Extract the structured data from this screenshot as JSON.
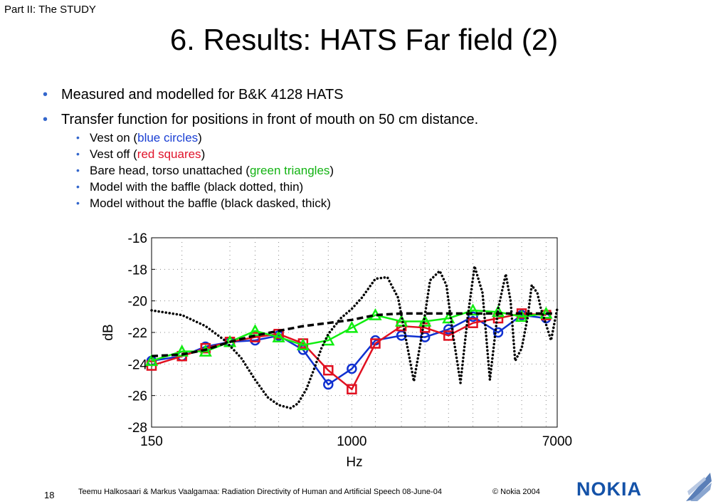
{
  "header": {
    "part": "Part II: The STUDY",
    "title": "6. Results: HATS Far field (2)"
  },
  "bullets": {
    "b1": "Measured and modelled for B&K 4128 HATS",
    "b2": "Transfer function for positions in front of mouth on 50 cm distance.",
    "sub": [
      {
        "pre": "Vest on (",
        "hl": "blue circles",
        "post": ")"
      },
      {
        "pre": "Vest off (",
        "hl": "red squares",
        "post": ")"
      },
      {
        "pre": "Bare head, torso unattached (",
        "hl": "green triangles",
        "post": ")"
      },
      {
        "pre": "Model with the baffle (black dotted, thin)",
        "hl": "",
        "post": ""
      },
      {
        "pre": "Model without the baffle (black dasked, thick)",
        "hl": "",
        "post": ""
      }
    ]
  },
  "chart_data": {
    "type": "line",
    "xlabel": "Hz",
    "ylabel": "dB",
    "xscale": "log",
    "xlim": [
      150,
      7000
    ],
    "ylim": [
      -28,
      -16
    ],
    "xticks": [
      150,
      1000,
      7000
    ],
    "xtick_labels": [
      "150",
      "1000",
      "7000"
    ],
    "yticks": [
      -16,
      -18,
      -20,
      -22,
      -24,
      -26,
      -28
    ],
    "ytick_labels": [
      "-16",
      "-18",
      "-20",
      "-22",
      "-24",
      "-26",
      "-28"
    ],
    "grid": true,
    "grid_x": [
      200,
      315,
      400,
      500,
      630,
      800,
      1000,
      1250,
      1600,
      2000,
      2500,
      3150,
      4000,
      5000,
      6300
    ],
    "series": [
      {
        "key": "blue",
        "color": "#1030d0",
        "marker": "circle",
        "style": "solid",
        "x": [
          150,
          200,
          250,
          315,
          400,
          500,
          630,
          800,
          1000,
          1250,
          1600,
          2000,
          2500,
          3150,
          4000,
          5000,
          6300
        ],
        "y": [
          -23.8,
          -23.5,
          -22.9,
          -22.6,
          -22.5,
          -22.2,
          -23.1,
          -25.3,
          -24.3,
          -22.5,
          -22.2,
          -22.3,
          -21.8,
          -21.0,
          -22.0,
          -20.9,
          -21.1
        ]
      },
      {
        "key": "red",
        "color": "#e01020",
        "marker": "square",
        "style": "solid",
        "x": [
          150,
          200,
          250,
          315,
          400,
          500,
          630,
          800,
          1000,
          1250,
          1600,
          2000,
          2500,
          3150,
          4000,
          5000,
          6300
        ],
        "y": [
          -24.1,
          -23.5,
          -23.0,
          -22.6,
          -22.3,
          -22.1,
          -22.7,
          -24.4,
          -25.6,
          -22.7,
          -21.6,
          -21.7,
          -22.2,
          -21.4,
          -21.1,
          -20.8,
          -20.9
        ]
      },
      {
        "key": "green",
        "color": "#10ee10",
        "marker": "triangle",
        "style": "solid",
        "x": [
          150,
          200,
          250,
          315,
          400,
          500,
          630,
          800,
          1000,
          1250,
          1600,
          2000,
          2500,
          3150,
          4000,
          5000,
          6300
        ],
        "y": [
          -23.8,
          -23.2,
          -23.2,
          -22.6,
          -21.9,
          -22.3,
          -22.8,
          -22.5,
          -21.7,
          -20.9,
          -21.3,
          -21.3,
          -21.1,
          -20.6,
          -20.7,
          -21.0,
          -20.8
        ]
      },
      {
        "key": "dotted",
        "color": "#000000",
        "marker": "none",
        "style": "dotted",
        "x": [
          150,
          200,
          250,
          300,
          350,
          400,
          450,
          500,
          560,
          600,
          650,
          700,
          750,
          800,
          900,
          1000,
          1100,
          1250,
          1400,
          1550,
          1650,
          1800,
          1950,
          2100,
          2300,
          2450,
          2600,
          2800,
          3000,
          3200,
          3450,
          3700,
          4000,
          4300,
          4500,
          4700,
          5000,
          5300,
          5500,
          5800,
          6000,
          6300,
          6600,
          7000
        ],
        "y": [
          -20.6,
          -20.9,
          -21.6,
          -22.5,
          -23.6,
          -25.0,
          -26.1,
          -26.6,
          -26.8,
          -26.5,
          -25.6,
          -24.3,
          -23.0,
          -22.1,
          -21.1,
          -20.5,
          -19.8,
          -18.6,
          -18.5,
          -19.8,
          -22.0,
          -25.1,
          -22.0,
          -18.7,
          -18.1,
          -19.0,
          -22.0,
          -25.2,
          -21.0,
          -17.8,
          -19.5,
          -25.0,
          -20.5,
          -18.3,
          -20.0,
          -23.8,
          -23.0,
          -21.0,
          -19.0,
          -19.5,
          -20.5,
          -21.5,
          -22.5,
          -20.5
        ]
      },
      {
        "key": "dashed",
        "color": "#000000",
        "marker": "none",
        "style": "dashed",
        "x": [
          150,
          200,
          250,
          315,
          400,
          500,
          630,
          800,
          1000,
          1250,
          1600,
          2000,
          2500,
          3150,
          4000,
          5000,
          6300,
          7000
        ],
        "y": [
          -23.5,
          -23.4,
          -23.1,
          -22.6,
          -22.2,
          -21.9,
          -21.6,
          -21.4,
          -21.2,
          -20.9,
          -20.8,
          -20.8,
          -20.8,
          -20.8,
          -20.8,
          -20.8,
          -20.8,
          -20.8
        ]
      }
    ]
  },
  "footer": {
    "page": "18",
    "text": "Teemu Halkosaari & Markus Vaalgamaa: Radiation Directivity of Human and Artificial Speech  08-June-04",
    "copyright": "© Nokia 2004",
    "logo": "NOKIA"
  }
}
